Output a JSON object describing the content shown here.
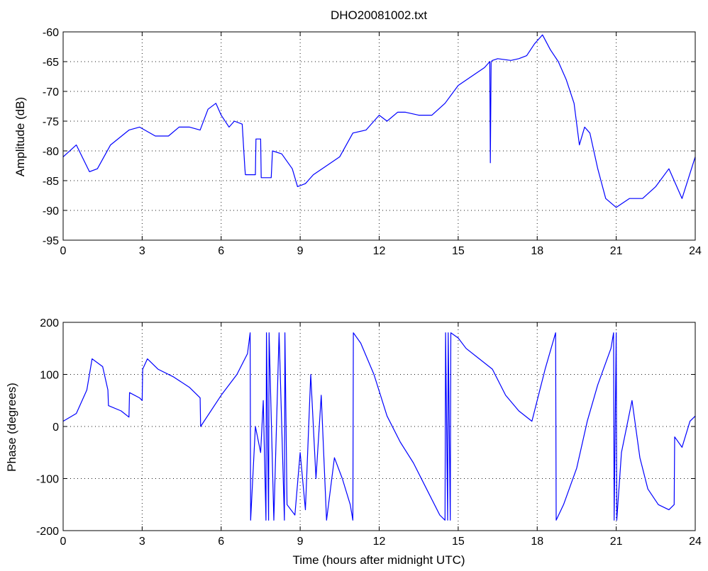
{
  "title": "DHO20081002.txt",
  "colors": {
    "trace": "#0000ff",
    "axes": "#000000",
    "background": "#ffffff"
  },
  "chart_data": [
    {
      "type": "line",
      "title": "DHO20081002.txt",
      "xlabel": "",
      "ylabel": "Amplitude (dB)",
      "xlim": [
        0,
        24
      ],
      "ylim": [
        -95,
        -60
      ],
      "grid": true,
      "xticks": [
        "0",
        "3",
        "6",
        "9",
        "12",
        "15",
        "18",
        "21",
        "24"
      ],
      "yticks": [
        "-95",
        "-90",
        "-85",
        "-80",
        "-75",
        "-70",
        "-65",
        "-60"
      ],
      "series": [
        {
          "x": [
            0,
            0.5,
            1.0,
            1.3,
            1.8,
            2.5,
            2.9,
            3.5,
            4.0,
            4.4,
            4.8,
            5.2,
            5.5,
            5.8,
            6.0,
            6.3,
            6.5,
            6.8,
            6.9,
            6.92,
            7.3,
            7.32,
            7.5,
            7.52,
            7.9,
            7.95,
            8.3,
            8.7,
            8.9,
            9.2,
            9.5,
            10,
            10.5,
            11,
            11.5,
            12,
            12.3,
            12.7,
            13,
            13.5,
            14,
            14.5,
            15,
            15.5,
            16,
            16.2,
            16.22,
            16.25,
            16.3,
            16.5,
            17,
            17.3,
            17.6,
            17.9,
            18.2,
            18.5,
            18.8,
            19.1,
            19.4,
            19.6,
            19.8,
            20,
            20.3,
            20.6,
            21,
            21.5,
            22,
            22.5,
            23,
            23.5,
            24
          ],
          "y": [
            -81,
            -79,
            -83.5,
            -83,
            -79,
            -76.5,
            -76,
            -77.5,
            -77.5,
            -76,
            -76,
            -76.5,
            -73,
            -72,
            -74,
            -76,
            -75,
            -75.5,
            -83,
            -84,
            -84,
            -78,
            -78,
            -84.5,
            -84.5,
            -80,
            -80.5,
            -83,
            -86,
            -85.5,
            -84,
            -82.5,
            -81,
            -77,
            -76.5,
            -74,
            -75,
            -73.5,
            -73.5,
            -74,
            -74,
            -72,
            -69,
            -67.5,
            -66,
            -65,
            -82,
            -65,
            -64.8,
            -64.5,
            -64.8,
            -64.5,
            -64,
            -62,
            -60.5,
            -63,
            -65,
            -68,
            -72,
            -79,
            -76,
            -77,
            -83,
            -88,
            -89.5,
            -88,
            -88,
            -86,
            -83,
            -88,
            -81
          ]
        }
      ]
    },
    {
      "type": "line",
      "title": "",
      "xlabel": "Time (hours after midnight UTC)",
      "ylabel": "Phase (degrees)",
      "xlim": [
        0,
        24
      ],
      "ylim": [
        -200,
        200
      ],
      "grid": true,
      "xticks": [
        "0",
        "3",
        "6",
        "9",
        "12",
        "15",
        "18",
        "21",
        "24"
      ],
      "yticks": [
        "-200",
        "-100",
        "0",
        "100",
        "200"
      ],
      "series": [
        {
          "x": [
            0,
            0.5,
            0.9,
            1.1,
            1.5,
            1.7,
            1.72,
            2.2,
            2.5,
            2.52,
            2.9,
            3.0,
            3.02,
            3.2,
            3.6,
            4.2,
            4.8,
            5.2,
            5.22,
            6.0,
            6.6,
            7.0,
            7.1,
            7.12,
            7.3,
            7.5,
            7.6,
            7.7,
            7.72,
            7.8,
            7.82,
            8.0,
            8.2,
            8.4,
            8.42,
            8.5,
            8.8,
            9.0,
            9.2,
            9.4,
            9.6,
            9.8,
            10.0,
            10.3,
            10.6,
            10.9,
            11.0,
            11.02,
            11.3,
            11.8,
            12.3,
            12.8,
            13.3,
            13.8,
            14.3,
            14.5,
            14.52,
            14.6,
            14.62,
            14.7,
            14.72,
            15.0,
            15.3,
            15.8,
            16.3,
            16.8,
            17.3,
            17.8,
            18.3,
            18.7,
            18.72,
            19.0,
            19.5,
            19.9,
            20.3,
            20.8,
            20.9,
            20.92,
            21.0,
            21.02,
            21.2,
            21.6,
            21.9,
            22.2,
            22.6,
            23.0,
            23.2,
            23.22,
            23.5,
            23.8,
            24
          ],
          "y": [
            10,
            25,
            70,
            130,
            115,
            70,
            40,
            30,
            18,
            65,
            55,
            50,
            110,
            130,
            110,
            95,
            75,
            55,
            0,
            60,
            100,
            140,
            180,
            -180,
            0,
            -50,
            50,
            -180,
            180,
            -180,
            180,
            -180,
            180,
            -180,
            180,
            -150,
            -170,
            -50,
            -160,
            100,
            -100,
            60,
            -180,
            -60,
            -100,
            -150,
            -180,
            180,
            160,
            100,
            20,
            -30,
            -70,
            -120,
            -170,
            -180,
            180,
            -180,
            180,
            -180,
            180,
            170,
            150,
            130,
            110,
            60,
            30,
            10,
            110,
            180,
            -180,
            -150,
            -80,
            10,
            80,
            150,
            180,
            -180,
            180,
            -180,
            -50,
            50,
            -60,
            -120,
            -150,
            -160,
            -150,
            -20,
            -40,
            10,
            20
          ]
        }
      ]
    }
  ]
}
